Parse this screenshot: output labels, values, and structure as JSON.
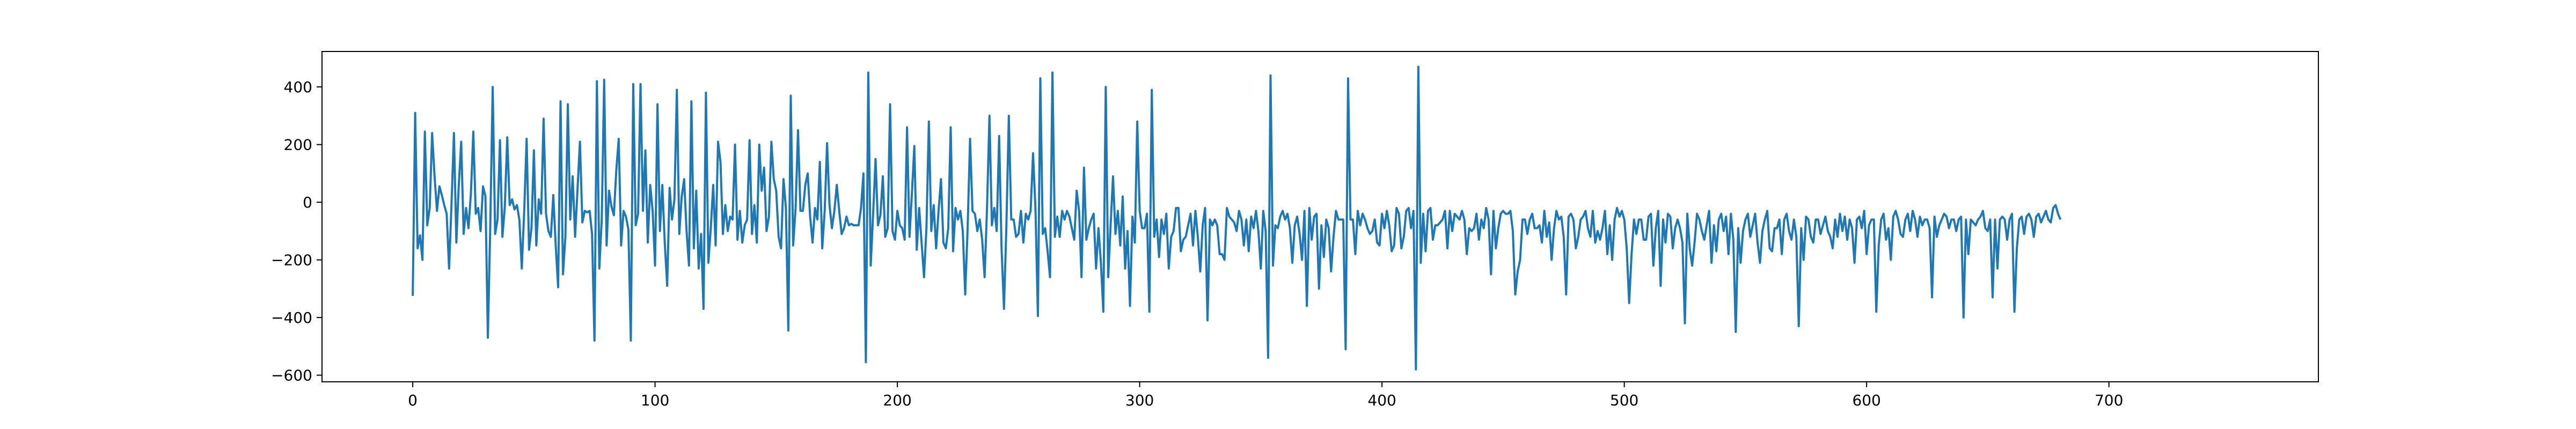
{
  "chart_data": {
    "type": "line",
    "title": "",
    "xlabel": "",
    "ylabel": "",
    "xlim": [
      -37.45,
      786.45
    ],
    "ylim": [
      -623,
      523
    ],
    "grid": false,
    "legend": "none",
    "x_ticks": [
      0,
      100,
      200,
      300,
      400,
      500,
      600,
      700
    ],
    "x_tick_labels": [
      "0",
      "100",
      "200",
      "300",
      "400",
      "500",
      "600",
      "700"
    ],
    "y_ticks": [
      -600,
      -400,
      -200,
      0,
      200,
      400
    ],
    "y_tick_labels": [
      "−600",
      "−400",
      "−200",
      "0",
      "200",
      "400"
    ],
    "series": [
      {
        "color": "#1f77b4",
        "x_start": 0,
        "x_step": 1,
        "values": [
          -325,
          310,
          -160,
          -115,
          -200,
          245,
          -80,
          -20,
          240,
          90,
          -30,
          55,
          25,
          -10,
          -40,
          -230,
          -5,
          240,
          -140,
          60,
          210,
          -110,
          -20,
          -90,
          30,
          245,
          -40,
          -20,
          -100,
          55,
          20,
          -470,
          -80,
          400,
          -110,
          -60,
          215,
          -120,
          -15,
          225,
          -10,
          10,
          -25,
          -10,
          -60,
          -230,
          -30,
          220,
          -165,
          -90,
          180,
          -150,
          10,
          -40,
          290,
          -40,
          -100,
          -120,
          25,
          -150,
          -295,
          350,
          -250,
          -120,
          340,
          -60,
          90,
          -120,
          45,
          210,
          -70,
          -30,
          -35,
          -30,
          -110,
          -480,
          420,
          -230,
          -60,
          425,
          -150,
          40,
          -15,
          -45,
          110,
          220,
          -150,
          -30,
          -50,
          -95,
          -480,
          410,
          -80,
          -40,
          410,
          -30,
          180,
          -140,
          60,
          -30,
          -220,
          340,
          -100,
          60,
          -140,
          -290,
          50,
          -60,
          10,
          390,
          -110,
          20,
          80,
          -100,
          -220,
          350,
          -160,
          40,
          -230,
          -110,
          -370,
          380,
          -210,
          -90,
          60,
          -150,
          210,
          140,
          -110,
          -10,
          -100,
          -50,
          -60,
          200,
          -130,
          -30,
          -140,
          -80,
          -60,
          215,
          -110,
          -10,
          -140,
          200,
          40,
          120,
          -100,
          -50,
          210,
          80,
          40,
          -120,
          -160,
          80,
          -20,
          -445,
          370,
          -150,
          -20,
          250,
          -30,
          -30,
          60,
          100,
          -50,
          -140,
          -20,
          -60,
          140,
          -160,
          -30,
          205,
          -10,
          -90,
          -30,
          60,
          -30,
          -110,
          -90,
          -50,
          -80,
          -75,
          -80,
          -80,
          -80,
          -20,
          100,
          -555,
          450,
          -220,
          -40,
          150,
          -80,
          -45,
          90,
          -120,
          -90,
          340,
          -100,
          -130,
          -30,
          -80,
          -90,
          -130,
          260,
          -120,
          30,
          195,
          -165,
          -20,
          -140,
          -260,
          -90,
          280,
          -100,
          -10,
          -160,
          -30,
          80,
          -140,
          -160,
          -90,
          260,
          -170,
          -20,
          -60,
          -30,
          -100,
          -320,
          -90,
          220,
          -30,
          -40,
          -100,
          -60,
          -130,
          -260,
          -20,
          300,
          -80,
          -20,
          -100,
          230,
          -160,
          -370,
          -80,
          300,
          -60,
          -60,
          -120,
          -110,
          -30,
          -140,
          -40,
          -60,
          -30,
          170,
          -25,
          -395,
          430,
          -110,
          -90,
          -170,
          -260,
          450,
          -120,
          -50,
          -120,
          -30,
          -60,
          -30,
          -50,
          -90,
          -130,
          40,
          -30,
          -260,
          120,
          -130,
          -90,
          -60,
          -40,
          -230,
          -90,
          -210,
          -380,
          400,
          -260,
          -80,
          90,
          -110,
          -30,
          -150,
          20,
          -230,
          -100,
          -360,
          -50,
          -140,
          280,
          -30,
          -90,
          -90,
          -40,
          -380,
          390,
          -120,
          -60,
          -190,
          -60,
          -110,
          -40,
          -230,
          -120,
          -100,
          -20,
          -20,
          -170,
          -130,
          -120,
          -80,
          -40,
          -150,
          -30,
          -120,
          -240,
          -80,
          -20,
          -410,
          -60,
          -80,
          -60,
          -80,
          -180,
          -180,
          -200,
          -20,
          -50,
          -60,
          -70,
          -100,
          -30,
          -60,
          -150,
          -60,
          -170,
          -50,
          -90,
          -30,
          -100,
          -230,
          -30,
          -100,
          -540,
          440,
          -220,
          -80,
          -90,
          -50,
          -30,
          -60,
          -40,
          -90,
          -210,
          -80,
          -50,
          -110,
          -200,
          -30,
          -360,
          -20,
          -130,
          -50,
          -40,
          -300,
          -80,
          -190,
          -60,
          -90,
          -240,
          -120,
          -30,
          -60,
          -60,
          -60,
          -510,
          430,
          -60,
          -60,
          -180,
          -30,
          -80,
          -40,
          -60,
          -90,
          -110,
          -100,
          -60,
          -140,
          -150,
          -40,
          -90,
          -30,
          -80,
          -170,
          -150,
          -20,
          -40,
          -160,
          -120,
          -30,
          -20,
          -90,
          -30,
          -580,
          470,
          -210,
          -40,
          -170,
          -30,
          -20,
          -130,
          -80,
          -80,
          -70,
          -60,
          -30,
          -160,
          -30,
          -100,
          -40,
          -50,
          -60,
          -30,
          -60,
          -180,
          -90,
          -100,
          -90,
          -40,
          -130,
          -60,
          -90,
          -20,
          -60,
          -250,
          -30,
          -160,
          -90,
          -40,
          -30,
          -40,
          -40,
          -30,
          -100,
          -320,
          -240,
          -200,
          -60,
          -60,
          -110,
          -60,
          -40,
          -90,
          -90,
          -80,
          -140,
          -30,
          -120,
          -70,
          -200,
          -90,
          -30,
          -60,
          -50,
          -120,
          -320,
          -50,
          -40,
          -60,
          -160,
          -120,
          -60,
          -50,
          -30,
          -90,
          -120,
          -30,
          -140,
          -100,
          -130,
          -90,
          -30,
          -180,
          -80,
          -200,
          -60,
          -20,
          -50,
          -30,
          -60,
          -160,
          -350,
          -180,
          -60,
          -110,
          -60,
          -60,
          -130,
          -130,
          -50,
          -40,
          -220,
          -90,
          -30,
          -290,
          -60,
          -140,
          -40,
          -50,
          -160,
          -90,
          -60,
          -90,
          -140,
          -420,
          -40,
          -160,
          -220,
          -140,
          -40,
          -60,
          -100,
          -130,
          -80,
          -30,
          -210,
          -80,
          -170,
          -60,
          -40,
          -100,
          -50,
          -180,
          -40,
          -130,
          -450,
          -90,
          -210,
          -100,
          -60,
          -40,
          -120,
          -80,
          -40,
          -140,
          -210,
          -100,
          -60,
          -30,
          -160,
          -170,
          -90,
          -90,
          -60,
          -180,
          -60,
          -40,
          -100,
          -130,
          -60,
          -120,
          -430,
          -90,
          -200,
          -50,
          -60,
          -120,
          -140,
          -60,
          -60,
          -110,
          -80,
          -50,
          -100,
          -120,
          -160,
          -60,
          -120,
          -40,
          -100,
          -50,
          -130,
          -60,
          -90,
          -210,
          -60,
          -50,
          -90,
          -30,
          -180,
          -80,
          -60,
          -60,
          -380,
          -150,
          -60,
          -40,
          -130,
          -90,
          -200,
          -50,
          -30,
          -60,
          -110,
          -120,
          -60,
          -40,
          -100,
          -30,
          -60,
          -120,
          -50,
          -80,
          -60,
          -60,
          -90,
          -330,
          -50,
          -120,
          -80,
          -60,
          -40,
          -50,
          -90,
          -60,
          -60,
          -100,
          -60,
          -50,
          -400,
          -60,
          -180,
          -60,
          -70,
          -80,
          -60,
          -50,
          -30,
          -90,
          -100,
          -60,
          -330,
          -60,
          -230,
          -60,
          -50,
          -60,
          -130,
          -60,
          -40,
          -380,
          -160,
          -60,
          -50,
          -110,
          -50,
          -40,
          -60,
          -120,
          -50,
          -40,
          -70,
          -50,
          -30,
          -60,
          -70,
          -20,
          -10,
          -40,
          -60
        ]
      }
    ]
  }
}
